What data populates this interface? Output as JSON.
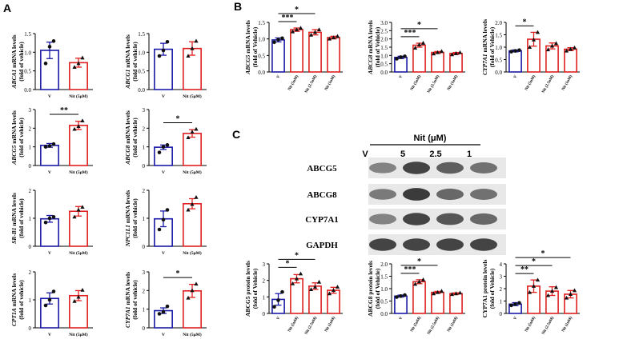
{
  "panels": {
    "A": "A",
    "B": "B",
    "C": "C"
  },
  "colors": {
    "vehicle": "#1a1aa6",
    "treated": "#e02020",
    "axis": "#000000",
    "blot_bg": "#e8e8e8",
    "band": "#2a2a2a"
  },
  "chart_data": [
    {
      "id": "A1",
      "type": "bar",
      "ylabel_italic": "ABCA1",
      "ylabel_rest": " mRNA levels",
      "ylabel2": "(fold of vehicle)",
      "categories": [
        "V",
        "Nit (5μM)"
      ],
      "values": [
        1.05,
        0.72
      ],
      "errors": [
        0.22,
        0.12
      ],
      "points": [
        [
          0.7,
          1.15,
          1.3
        ],
        [
          0.6,
          0.7,
          0.85
        ]
      ],
      "ylim": [
        0,
        1.5
      ],
      "yticks": [
        0,
        0.5,
        1.0,
        1.5
      ],
      "sig": []
    },
    {
      "id": "A2",
      "type": "bar",
      "ylabel_italic": "ABCG1",
      "ylabel_rest": " mRNA levels",
      "ylabel2": "(fold of vehicle)",
      "categories": [
        "V",
        "Nit (5μM)"
      ],
      "values": [
        1.08,
        1.1
      ],
      "errors": [
        0.16,
        0.18
      ],
      "points": [
        [
          0.9,
          1.05,
          1.28
        ],
        [
          0.9,
          1.1,
          1.3
        ]
      ],
      "ylim": [
        0,
        1.5
      ],
      "yticks": [
        0,
        0.5,
        1.0,
        1.5
      ],
      "sig": []
    },
    {
      "id": "A3",
      "type": "bar",
      "ylabel_italic": "ABCG5",
      "ylabel_rest": " mRNA levels",
      "ylabel2": "(fold of vehicle)",
      "categories": [
        "V",
        "Nit (5μM)"
      ],
      "values": [
        1.08,
        2.15
      ],
      "errors": [
        0.1,
        0.22
      ],
      "points": [
        [
          1.0,
          1.05,
          1.15
        ],
        [
          1.95,
          2.1,
          2.4
        ]
      ],
      "ylim": [
        0,
        3
      ],
      "yticks": [
        0,
        1,
        2,
        3
      ],
      "sig": [
        {
          "from": 0,
          "to": 1,
          "label": "**"
        }
      ]
    },
    {
      "id": "A4",
      "type": "bar",
      "ylabel_italic": "ABCG8",
      "ylabel_rest": " mRNA levels",
      "ylabel2": "(fold of vehicle)",
      "categories": [
        "V",
        "Nit (5μM)"
      ],
      "values": [
        0.98,
        1.72
      ],
      "errors": [
        0.12,
        0.2
      ],
      "points": [
        [
          0.7,
          1.0,
          1.1
        ],
        [
          1.5,
          1.8,
          1.95
        ]
      ],
      "ylim": [
        0,
        3
      ],
      "yticks": [
        0,
        1,
        2,
        3
      ],
      "sig": [
        {
          "from": 0,
          "to": 1,
          "label": "*"
        }
      ]
    },
    {
      "id": "A5",
      "type": "bar",
      "ylabel_italic": "SR-B1",
      "ylabel_rest": " mRNA levels",
      "ylabel2": "(fold of vehicle)",
      "categories": [
        "V",
        "Nit (5μM)"
      ],
      "values": [
        0.98,
        1.25
      ],
      "errors": [
        0.12,
        0.17
      ],
      "points": [
        [
          0.85,
          1.0,
          1.05
        ],
        [
          1.05,
          1.3,
          1.4
        ]
      ],
      "ylim": [
        0,
        2
      ],
      "yticks": [
        0,
        1,
        2
      ],
      "sig": []
    },
    {
      "id": "A6",
      "type": "bar",
      "ylabel_italic": "NPC1L1",
      "ylabel_rest": " mRNA levels",
      "ylabel2": "(fold of vehicle)",
      "categories": [
        "V",
        "Nit (5μM)"
      ],
      "values": [
        0.98,
        1.52
      ],
      "errors": [
        0.28,
        0.18
      ],
      "points": [
        [
          0.6,
          0.95,
          1.3
        ],
        [
          1.3,
          1.5,
          1.75
        ]
      ],
      "ylim": [
        0,
        2
      ],
      "yticks": [
        0,
        1,
        2
      ],
      "sig": []
    },
    {
      "id": "A7",
      "type": "bar",
      "ylabel_italic": "CPT1A",
      "ylabel_rest": " mRNA levels",
      "ylabel2": "(fold of vehicle)",
      "categories": [
        "V",
        "Nit (5μM)"
      ],
      "values": [
        1.05,
        1.15
      ],
      "errors": [
        0.2,
        0.18
      ],
      "points": [
        [
          0.8,
          1.0,
          1.3
        ],
        [
          0.95,
          1.1,
          1.35
        ]
      ],
      "ylim": [
        0,
        2
      ],
      "yticks": [
        0,
        1,
        2
      ],
      "sig": []
    },
    {
      "id": "A8",
      "type": "bar",
      "ylabel_italic": "CYP7A1",
      "ylabel_rest": " mRNA levels",
      "ylabel2": "(fold of vehicle)",
      "categories": [
        "V",
        "Nit (5μM)"
      ],
      "values": [
        0.92,
        1.98
      ],
      "errors": [
        0.15,
        0.35
      ],
      "points": [
        [
          0.75,
          0.85,
          1.15
        ],
        [
          1.6,
          2.0,
          2.35
        ]
      ],
      "ylim": [
        0,
        3
      ],
      "yticks": [
        0,
        1,
        2,
        3
      ],
      "sig": [
        {
          "from": 0,
          "to": 1,
          "label": "*"
        }
      ]
    },
    {
      "id": "B1",
      "type": "bar",
      "ylabel_italic": "ABCG5",
      "ylabel_rest": " mRNA levels",
      "ylabel2": "(fold of Vehicle)",
      "categories": [
        "V",
        "Nit (5uM)",
        "Nit (2.5uM)",
        "Nit (1uM)"
      ],
      "values": [
        0.97,
        1.28,
        1.2,
        1.04
      ],
      "errors": [
        0.06,
        0.05,
        0.08,
        0.04
      ],
      "points": [
        [
          0.9,
          0.98,
          1.02
        ],
        [
          1.22,
          1.28,
          1.33
        ],
        [
          1.12,
          1.2,
          1.28
        ],
        [
          1.0,
          1.04,
          1.08
        ]
      ],
      "ylim": [
        0,
        1.5
      ],
      "yticks": [
        0,
        0.5,
        1.0,
        1.5
      ],
      "sig": [
        {
          "from": 0,
          "to": 1,
          "label": "***"
        },
        {
          "from": 0,
          "to": 2,
          "label": "*"
        }
      ]
    },
    {
      "id": "B2",
      "type": "bar",
      "ylabel_italic": "ABCG8",
      "ylabel_rest": " mRNA levels",
      "ylabel2": "(fold of Vehicle)",
      "categories": [
        "V",
        "Nit (5uM)",
        "Nit (2.5uM)",
        "Nit (1uM)"
      ],
      "values": [
        0.88,
        1.62,
        1.18,
        1.12
      ],
      "errors": [
        0.07,
        0.12,
        0.06,
        0.06
      ],
      "points": [
        [
          0.8,
          0.9,
          0.95
        ],
        [
          1.45,
          1.65,
          1.75
        ],
        [
          1.1,
          1.18,
          1.25
        ],
        [
          1.05,
          1.12,
          1.18
        ]
      ],
      "ylim": [
        0,
        3
      ],
      "yticks": [
        0,
        0.5,
        1.0,
        1.5,
        2.0,
        2.5,
        3.0
      ],
      "sig": [
        {
          "from": 0,
          "to": 1,
          "label": "***"
        },
        {
          "from": 0,
          "to": 2,
          "label": "*"
        }
      ]
    },
    {
      "id": "B3",
      "type": "bar",
      "ylabel_italic": "CYP7A1",
      "ylabel_rest": " mRNA levels",
      "ylabel2": "(fold of Vehicle)",
      "categories": [
        "V",
        "Nit (5uM)",
        "Nit (2.5uM)",
        "Nit (1uM)"
      ],
      "values": [
        0.85,
        1.32,
        1.05,
        0.92
      ],
      "errors": [
        0.04,
        0.28,
        0.12,
        0.06
      ],
      "points": [
        [
          0.82,
          0.85,
          0.88
        ],
        [
          1.0,
          1.3,
          1.6
        ],
        [
          0.9,
          1.05,
          1.15
        ],
        [
          0.85,
          0.92,
          0.98
        ]
      ],
      "ylim": [
        0,
        2
      ],
      "yticks": [
        0,
        0.5,
        1.0,
        1.5,
        2.0
      ],
      "sig": [
        {
          "from": 0,
          "to": 1,
          "label": "*"
        }
      ]
    },
    {
      "id": "C1",
      "type": "bar",
      "ylabel_italic": "",
      "ylabel_rest": "ABCG5 protein levels",
      "ylabel2": "(fold of Vehicle)",
      "categories": [
        "V",
        "Nit (5uM)",
        "Nit (2.5uM)",
        "Nit (1uM)"
      ],
      "values": [
        0.85,
        2.1,
        1.65,
        1.4
      ],
      "errors": [
        0.35,
        0.25,
        0.2,
        0.18
      ],
      "points": [
        [
          0.4,
          0.8,
          1.3
        ],
        [
          1.8,
          2.1,
          2.4
        ],
        [
          1.45,
          1.6,
          1.9
        ],
        [
          1.2,
          1.4,
          1.6
        ]
      ],
      "ylim": [
        0,
        3
      ],
      "yticks": [
        0,
        1,
        2,
        3
      ],
      "sig": [
        {
          "from": 0,
          "to": 1,
          "label": "*"
        },
        {
          "from": 0,
          "to": 2,
          "label": "*"
        }
      ]
    },
    {
      "id": "C2",
      "type": "bar",
      "ylabel_italic": "",
      "ylabel_rest": "ABCG8 protein levels",
      "ylabel2": "(fold of Vehicle)",
      "categories": [
        "V",
        "Nit (5uM)",
        "Nit (2.5uM)",
        "Nit (1uM)"
      ],
      "values": [
        0.7,
        1.28,
        0.85,
        0.8
      ],
      "errors": [
        0.04,
        0.08,
        0.04,
        0.03
      ],
      "points": [
        [
          0.66,
          0.7,
          0.74
        ],
        [
          1.18,
          1.28,
          1.36
        ],
        [
          0.8,
          0.85,
          0.9
        ],
        [
          0.77,
          0.8,
          0.83
        ]
      ],
      "ylim": [
        0,
        2
      ],
      "yticks": [
        0,
        0.5,
        1.0,
        1.5,
        2.0
      ],
      "sig": [
        {
          "from": 0,
          "to": 1,
          "label": "***"
        },
        {
          "from": 0,
          "to": 2,
          "label": "*"
        }
      ]
    },
    {
      "id": "C3",
      "type": "bar",
      "ylabel_italic": "",
      "ylabel_rest": "CYP7A1 protein levels",
      "ylabel2": "(fold of Vehicle)",
      "categories": [
        "V",
        "Nit (5uM)",
        "Nit (2.5uM)",
        "Nit (1uM)"
      ],
      "values": [
        0.75,
        2.2,
        1.8,
        1.55
      ],
      "errors": [
        0.12,
        0.5,
        0.35,
        0.3
      ],
      "points": [
        [
          0.65,
          0.75,
          0.85
        ],
        [
          1.7,
          2.2,
          2.7
        ],
        [
          1.45,
          1.8,
          2.1
        ],
        [
          1.25,
          1.55,
          1.85
        ]
      ],
      "ylim": [
        0,
        4
      ],
      "yticks": [
        0,
        1,
        2,
        3,
        4
      ],
      "sig": [
        {
          "from": 0,
          "to": 1,
          "label": "**"
        },
        {
          "from": 0,
          "to": 2,
          "label": "*"
        },
        {
          "from": 0,
          "to": 3,
          "label": "*"
        }
      ]
    }
  ],
  "blot": {
    "header": "Nit (μM)",
    "lanes": [
      "V",
      "5",
      "2.5",
      "1"
    ],
    "rows": [
      {
        "label": "ABCG5",
        "intensity": [
          0.55,
          0.9,
          0.75,
          0.65
        ]
      },
      {
        "label": "ABCG8",
        "intensity": [
          0.6,
          0.95,
          0.7,
          0.65
        ]
      },
      {
        "label": "CYP7A1",
        "intensity": [
          0.55,
          0.9,
          0.8,
          0.7
        ]
      },
      {
        "label": "GAPDH",
        "intensity": [
          0.9,
          0.9,
          0.9,
          0.9
        ]
      }
    ]
  }
}
